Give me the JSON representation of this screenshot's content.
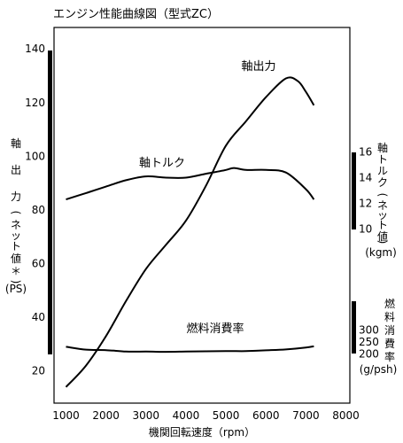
{
  "chart_data": {
    "type": "line",
    "title": "エンジン性能曲線図（型式ZC）",
    "xlabel": "機関回転速度（rpm）",
    "x_ticks": [
      1000,
      2000,
      3000,
      4000,
      5000,
      6000,
      7000,
      8000
    ],
    "xlim": [
      700,
      8100
    ],
    "left_axis": {
      "label_chars": [
        "軸",
        "出",
        "力",
        "(",
        "ネ",
        "ッ",
        "ト",
        "値",
        "＊",
        ")"
      ],
      "unit": "(PS)",
      "ticks": [
        20,
        40,
        60,
        80,
        100,
        120,
        140
      ],
      "ylim": [
        8,
        148
      ]
    },
    "right_axis_torque": {
      "label_chars": [
        "軸",
        "ト",
        "ル",
        "ク",
        "(",
        "ネ",
        "ッ",
        "ト",
        "値",
        ")"
      ],
      "unit": "(kgm)",
      "ticks": [
        10,
        12,
        14,
        16
      ]
    },
    "right_axis_fuel": {
      "label_chars": [
        "燃",
        "料",
        "消",
        "費",
        "率"
      ],
      "unit": "(g/psh)",
      "ticks": [
        200,
        250,
        300
      ]
    },
    "series": [
      {
        "name": "軸出力",
        "axis": "left",
        "points": [
          [
            1000,
            14
          ],
          [
            1500,
            22
          ],
          [
            2000,
            33
          ],
          [
            2500,
            46
          ],
          [
            3000,
            58
          ],
          [
            3500,
            67
          ],
          [
            4000,
            76
          ],
          [
            4500,
            89
          ],
          [
            5000,
            104
          ],
          [
            5500,
            113
          ],
          [
            6000,
            122
          ],
          [
            6500,
            129
          ],
          [
            6800,
            128
          ],
          [
            7000,
            124
          ],
          [
            7200,
            119
          ]
        ]
      },
      {
        "name": "軸トルク",
        "axis": "right_torque",
        "points": [
          [
            1000,
            12.3
          ],
          [
            1500,
            12.8
          ],
          [
            2000,
            13.3
          ],
          [
            2500,
            13.8
          ],
          [
            3000,
            14.1
          ],
          [
            3500,
            14.0
          ],
          [
            4000,
            14.0
          ],
          [
            4500,
            14.3
          ],
          [
            5000,
            14.6
          ],
          [
            5200,
            14.75
          ],
          [
            5500,
            14.6
          ],
          [
            6000,
            14.6
          ],
          [
            6500,
            14.4
          ],
          [
            7000,
            13.1
          ],
          [
            7200,
            12.3
          ]
        ]
      },
      {
        "name": "燃料消費率",
        "axis": "right_fuel",
        "points": [
          [
            1000,
            230
          ],
          [
            1500,
            218
          ],
          [
            2000,
            216
          ],
          [
            2500,
            210
          ],
          [
            3000,
            210
          ],
          [
            3500,
            209
          ],
          [
            4000,
            210
          ],
          [
            4500,
            211
          ],
          [
            5000,
            212
          ],
          [
            5500,
            212
          ],
          [
            6000,
            215
          ],
          [
            6500,
            219
          ],
          [
            7000,
            227
          ],
          [
            7200,
            232
          ]
        ]
      }
    ],
    "grid": false,
    "legend": "none"
  }
}
